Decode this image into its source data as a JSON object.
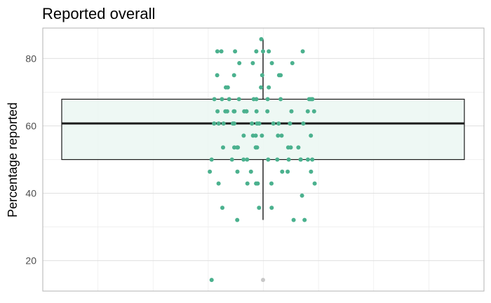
{
  "chart_data": {
    "type": "scatter",
    "subtype": "boxplot-with-jitter",
    "title": "Reported overall",
    "xlabel": "",
    "ylabel": "Percentage reported",
    "ylim": [
      11,
      89
    ],
    "yticks": [
      "20",
      "40",
      "60",
      "80"
    ],
    "grid": true,
    "legend": "none",
    "box": {
      "q1": 50,
      "median": 60.7,
      "q3": 67.9,
      "whisker_low": 32.1,
      "whisker_high": 85.7,
      "outliers": [
        14.3
      ]
    },
    "points": [
      85.7,
      82.1,
      82.1,
      82.1,
      82.1,
      82.1,
      82.1,
      82.1,
      78.6,
      78.6,
      78.6,
      78.6,
      75,
      75,
      75,
      75,
      75,
      71.4,
      71.4,
      71.4,
      71.4,
      67.9,
      67.9,
      67.9,
      67.9,
      67.9,
      67.9,
      67.9,
      67.9,
      67.9,
      67.9,
      67.9,
      64.3,
      64.3,
      64.3,
      64.3,
      64.3,
      64.3,
      64.3,
      64.3,
      64.3,
      64.3,
      64.3,
      64.3,
      64.3,
      60.7,
      60.7,
      60.7,
      60.7,
      60.7,
      60.7,
      60.7,
      60.7,
      60.7,
      60.7,
      60.7,
      60.7,
      57.1,
      57.1,
      57.1,
      57.1,
      57.1,
      57.1,
      57.1,
      53.6,
      53.6,
      53.6,
      53.6,
      53.6,
      53.6,
      53.6,
      53.6,
      53.6,
      53.6,
      50,
      50,
      50,
      50,
      50,
      50,
      50,
      50,
      50,
      50,
      50,
      46.4,
      46.4,
      46.4,
      46.4,
      46.4,
      46.4,
      42.9,
      42.9,
      42.9,
      42.9,
      42.9,
      42.9,
      39.3,
      35.7,
      35.7,
      35.7,
      32.1,
      32.1,
      32.1,
      14.3
    ],
    "colors": {
      "points": "#4bb18e",
      "box_fill": "#ebf7f2",
      "box_line": "#1a1a1a",
      "outlier": "#c8c8c8",
      "grid": "#dcdcdc",
      "panel_border": "#b3b3b3"
    }
  }
}
